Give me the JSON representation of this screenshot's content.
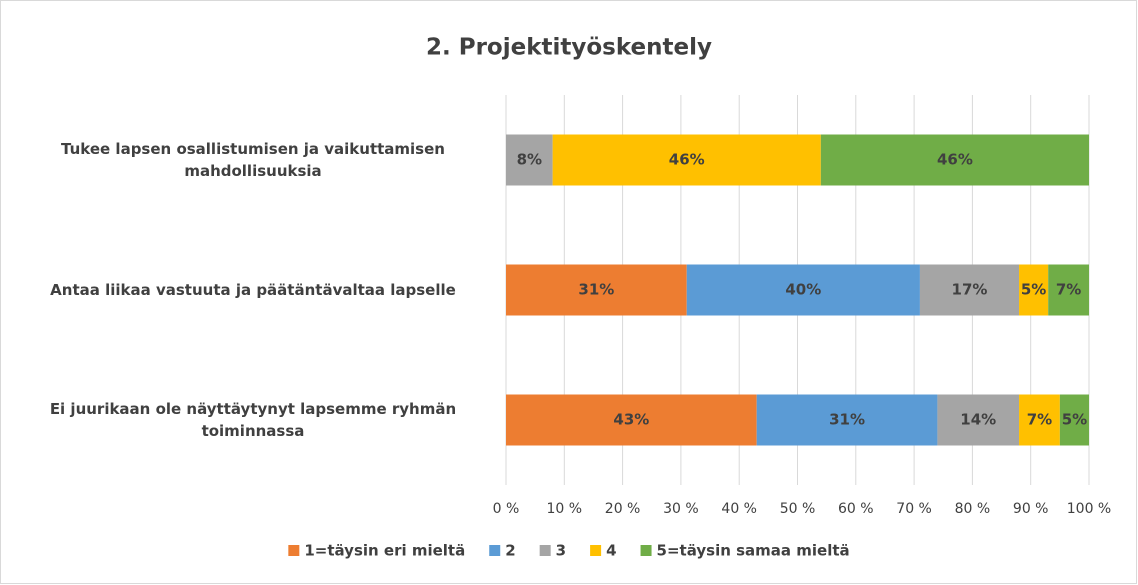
{
  "chart_data": {
    "type": "stacked-bar-horizontal",
    "title": "2. Projektityöskentely",
    "categories": [
      "Tukee lapsen osallistumisen ja vaikuttamisen mahdollisuuksia",
      "Antaa liikaa vastuuta ja päätäntävaltaa lapselle",
      "Ei juurikaan ole näyttäytynyt lapsemme ryhmän toiminnassa"
    ],
    "series": [
      {
        "name": "1=täysin eri mieltä",
        "color": "#ED7D31",
        "values": [
          0,
          31,
          43
        ],
        "value_labels": [
          null,
          "31%",
          "43%"
        ]
      },
      {
        "name": "2",
        "color": "#5B9BD5",
        "values": [
          0,
          40,
          31
        ],
        "value_labels": [
          null,
          "40%",
          "31%"
        ]
      },
      {
        "name": "3",
        "color": "#A5A5A5",
        "values": [
          8,
          17,
          14
        ],
        "value_labels": [
          "8%",
          "17%",
          "14%"
        ]
      },
      {
        "name": "4",
        "color": "#FFC000",
        "values": [
          46,
          5,
          7
        ],
        "value_labels": [
          "46%",
          "5%",
          "7%"
        ]
      },
      {
        "name": "5=täysin samaa mieltä",
        "color": "#70AD47",
        "values": [
          46,
          7,
          5
        ],
        "value_labels": [
          "46%",
          "7%",
          "5%"
        ]
      }
    ],
    "xlim": [
      0,
      100
    ],
    "xticks": [
      {
        "value": 0,
        "label": "0 %"
      },
      {
        "value": 10,
        "label": "10 %"
      },
      {
        "value": 20,
        "label": "20 %"
      },
      {
        "value": 30,
        "label": "30 %"
      },
      {
        "value": 40,
        "label": "40 %"
      },
      {
        "value": 50,
        "label": "50 %"
      },
      {
        "value": 60,
        "label": "60 %"
      },
      {
        "value": 70,
        "label": "70 %"
      },
      {
        "value": 80,
        "label": "80 %"
      },
      {
        "value": 90,
        "label": "90 %"
      },
      {
        "value": 100,
        "label": "100 %"
      }
    ],
    "grid": true,
    "legend": "bottom"
  }
}
